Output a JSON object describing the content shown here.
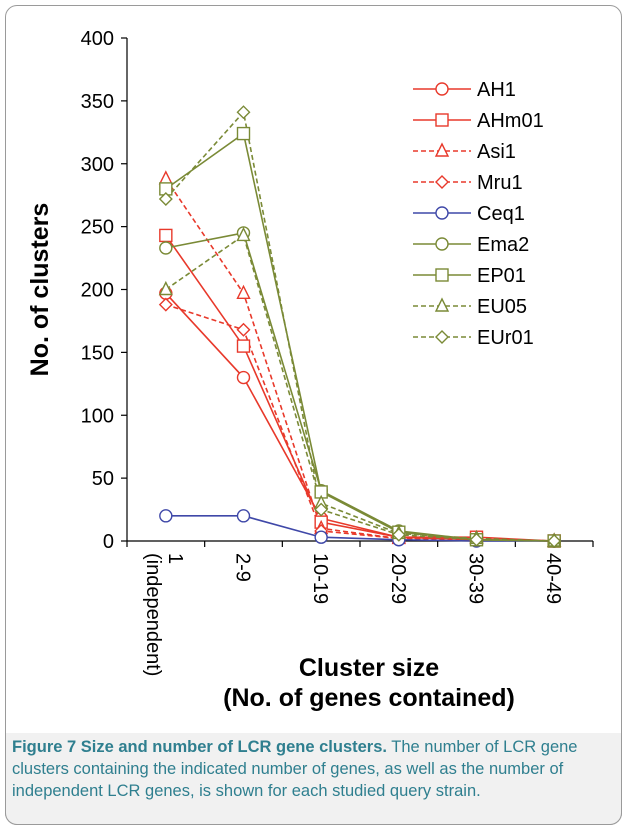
{
  "chart_data": {
    "type": "line",
    "categories": [
      "1\n(independent)",
      "2-9",
      "10-19",
      "20-29",
      "30-39",
      "40-49"
    ],
    "ylabel": "No. of clusters",
    "xlabel_line1": "Cluster size",
    "xlabel_line2": "(No. of genes contained)",
    "ylim": [
      0,
      400
    ],
    "yticks": [
      0,
      50,
      100,
      150,
      200,
      250,
      300,
      350,
      400
    ],
    "grid": false,
    "legend_position": "right",
    "series": [
      {
        "name": "AH1",
        "color": "#e8392b",
        "marker": "circle",
        "dashed": false,
        "values": [
          197,
          130,
          18,
          3,
          1,
          0
        ]
      },
      {
        "name": "AHm01",
        "color": "#e8392b",
        "marker": "square",
        "dashed": false,
        "values": [
          243,
          155,
          15,
          3,
          3,
          0
        ]
      },
      {
        "name": "Asi1",
        "color": "#e8392b",
        "marker": "triangle",
        "dashed": true,
        "values": [
          288,
          197,
          10,
          2,
          2,
          0
        ]
      },
      {
        "name": "Mru1",
        "color": "#e8392b",
        "marker": "diamond",
        "dashed": true,
        "values": [
          188,
          168,
          8,
          2,
          1,
          0
        ]
      },
      {
        "name": "Ceq1",
        "color": "#3f48a8",
        "marker": "circle",
        "dashed": false,
        "values": [
          20,
          20,
          3,
          1,
          0,
          0
        ]
      },
      {
        "name": "Ema2",
        "color": "#7a8a36",
        "marker": "circle",
        "dashed": false,
        "values": [
          233,
          245,
          40,
          8,
          1,
          0
        ]
      },
      {
        "name": "EP01",
        "color": "#7a8a36",
        "marker": "square",
        "dashed": false,
        "values": [
          280,
          324,
          39,
          7,
          1,
          0
        ]
      },
      {
        "name": "EU05",
        "color": "#7a8a36",
        "marker": "triangle",
        "dashed": true,
        "values": [
          200,
          243,
          30,
          6,
          2,
          0
        ]
      },
      {
        "name": "EUr01",
        "color": "#7a8a36",
        "marker": "diamond",
        "dashed": true,
        "values": [
          272,
          341,
          25,
          5,
          1,
          0
        ]
      }
    ]
  },
  "caption": {
    "bold": "Figure 7 Size and number of LCR gene clusters.",
    "text": " The number of LCR gene clusters containing the indicated number of genes, as well as the number of independent LCR genes, is shown for each studied query strain."
  }
}
